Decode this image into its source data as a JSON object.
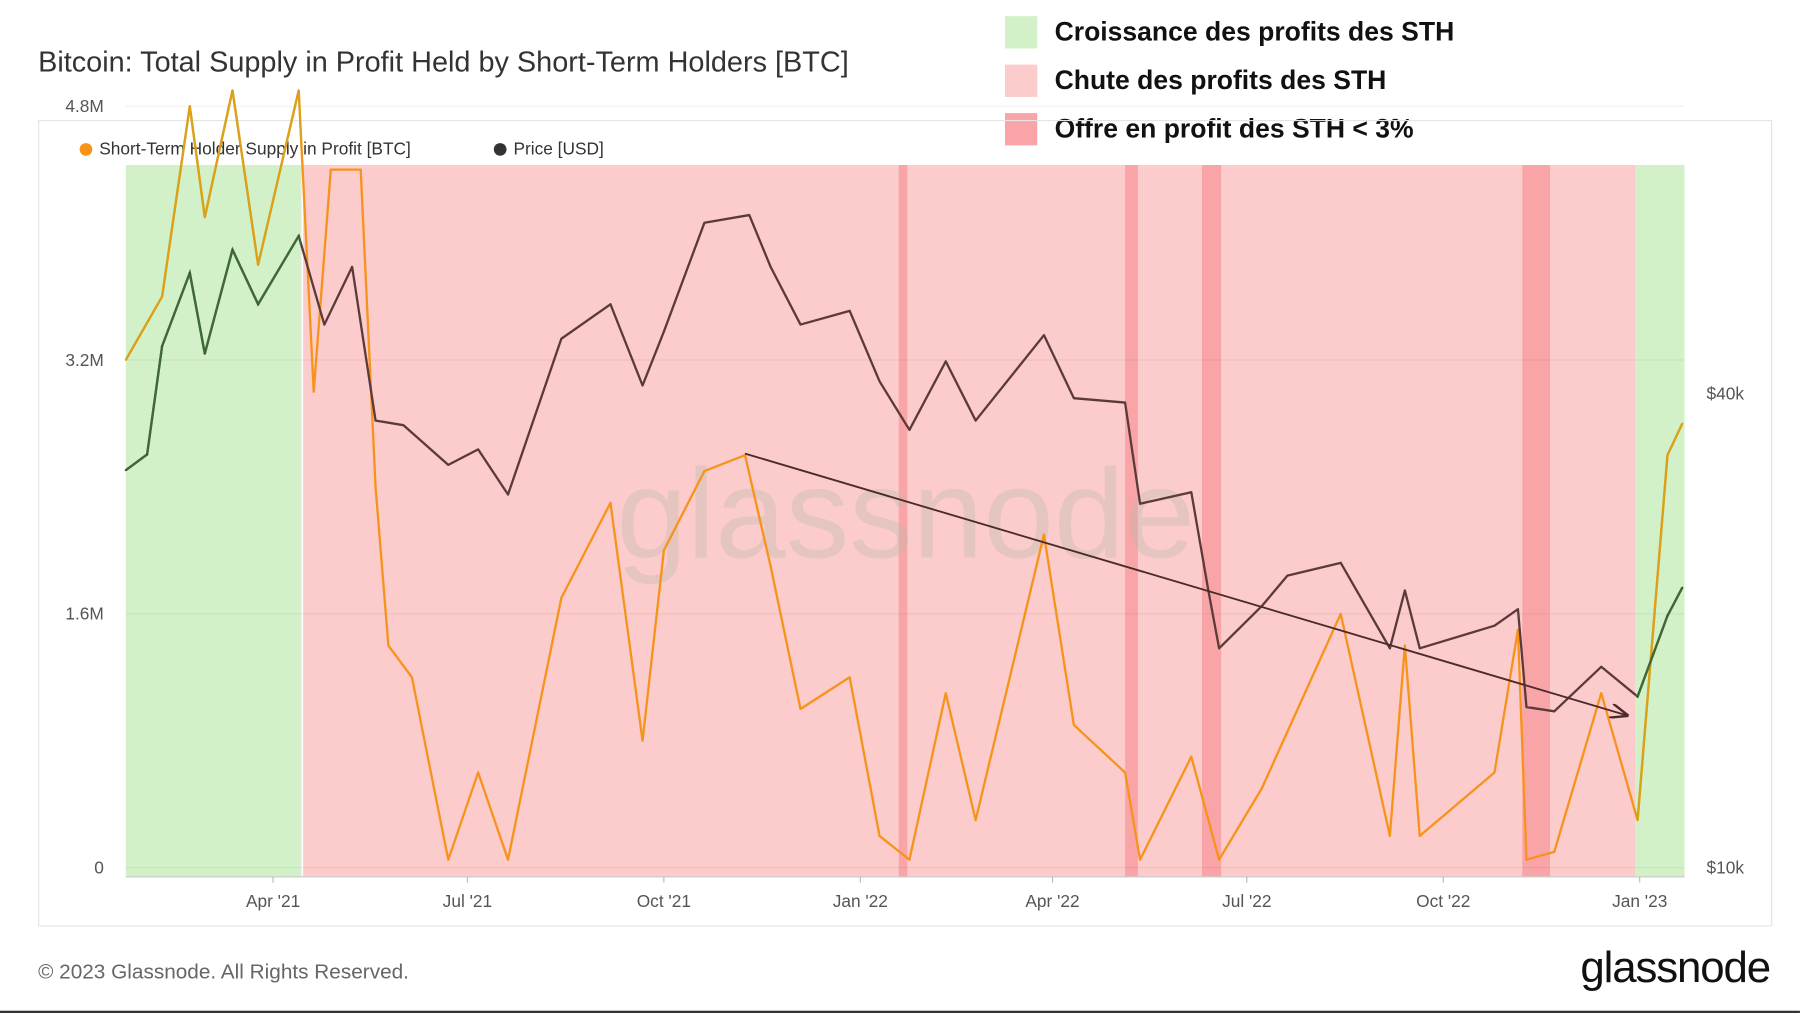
{
  "title": "Bitcoin: Total Supply in Profit Held by Short-Term Holders [BTC]",
  "overlay_legend": [
    {
      "label": "Croissance des profits des STH",
      "color": "#d3f1c8"
    },
    {
      "label": "Chute des profits des STH",
      "color": "#fccbcb"
    },
    {
      "label": "Offre en profit des STH < 3%",
      "color": "#f9a5a7"
    }
  ],
  "footer": "© 2023 Glassnode. All Rights Reserved.",
  "brand": "glassnode",
  "watermark": "glassnode",
  "chart_data": {
    "type": "line",
    "title": "Bitcoin: Total Supply in Profit Held by Short-Term Holders [BTC]",
    "x_range": [
      "2021-01-22",
      "2023-01-22"
    ],
    "x_ticks": [
      {
        "date": "2021-04-01",
        "label": "Apr '21"
      },
      {
        "date": "2021-07-01",
        "label": "Jul '21"
      },
      {
        "date": "2021-10-01",
        "label": "Oct '21"
      },
      {
        "date": "2022-01-01",
        "label": "Jan '22"
      },
      {
        "date": "2022-04-01",
        "label": "Apr '22"
      },
      {
        "date": "2022-07-01",
        "label": "Jul '22"
      },
      {
        "date": "2022-10-01",
        "label": "Oct '22"
      },
      {
        "date": "2023-01-01",
        "label": "Jan '23"
      }
    ],
    "y_left": {
      "range": [
        0,
        5.5
      ],
      "unit": "M BTC",
      "ticks": [
        {
          "v": 0,
          "label": "0"
        },
        {
          "v": 1.6,
          "label": "1.6M"
        },
        {
          "v": 3.2,
          "label": "3.2M"
        },
        {
          "v": 4.8,
          "label": "4.8M"
        }
      ]
    },
    "y_right": {
      "scale": "log",
      "range": [
        10000,
        75000
      ],
      "ticks": [
        {
          "v": 10000,
          "label": "$10k"
        },
        {
          "v": 40000,
          "label": "$40k"
        }
      ]
    },
    "grid": true,
    "legend_placement": "top-left",
    "series": [
      {
        "name": "Short-Term Holder Supply in Profit [BTC]",
        "axis": "left",
        "color": "#f7931a",
        "color_in_growth": "#d9a21b",
        "points": [
          [
            "2021-01-22",
            3.2
          ],
          [
            "2021-02-08",
            3.6
          ],
          [
            "2021-02-21",
            4.8
          ],
          [
            "2021-02-28",
            4.1
          ],
          [
            "2021-03-13",
            4.9
          ],
          [
            "2021-03-25",
            3.8
          ],
          [
            "2021-04-13",
            4.9
          ],
          [
            "2021-04-20",
            3.0
          ],
          [
            "2021-04-28",
            4.4
          ],
          [
            "2021-05-12",
            4.4
          ],
          [
            "2021-05-19",
            2.4
          ],
          [
            "2021-05-25",
            1.4
          ],
          [
            "2021-06-05",
            1.2
          ],
          [
            "2021-06-22",
            0.05
          ],
          [
            "2021-07-06",
            0.6
          ],
          [
            "2021-07-20",
            0.05
          ],
          [
            "2021-08-14",
            1.7
          ],
          [
            "2021-09-06",
            2.3
          ],
          [
            "2021-09-21",
            0.8
          ],
          [
            "2021-10-01",
            2.0
          ],
          [
            "2021-10-20",
            2.5
          ],
          [
            "2021-11-08",
            2.6
          ],
          [
            "2021-11-20",
            1.9
          ],
          [
            "2021-12-04",
            1.0
          ],
          [
            "2021-12-27",
            1.2
          ],
          [
            "2022-01-10",
            0.2
          ],
          [
            "2022-01-24",
            0.05
          ],
          [
            "2022-02-10",
            1.1
          ],
          [
            "2022-02-24",
            0.3
          ],
          [
            "2022-03-28",
            2.1
          ],
          [
            "2022-04-11",
            0.9
          ],
          [
            "2022-05-05",
            0.6
          ],
          [
            "2022-05-12",
            0.05
          ],
          [
            "2022-06-05",
            0.7
          ],
          [
            "2022-06-18",
            0.05
          ],
          [
            "2022-07-08",
            0.5
          ],
          [
            "2022-08-14",
            1.6
          ],
          [
            "2022-09-06",
            0.2
          ],
          [
            "2022-09-13",
            1.4
          ],
          [
            "2022-09-20",
            0.2
          ],
          [
            "2022-10-25",
            0.6
          ],
          [
            "2022-11-05",
            1.5
          ],
          [
            "2022-11-09",
            0.05
          ],
          [
            "2022-11-22",
            0.1
          ],
          [
            "2022-12-14",
            1.1
          ],
          [
            "2022-12-31",
            0.3
          ],
          [
            "2023-01-14",
            2.6
          ],
          [
            "2023-01-21",
            2.8
          ]
        ]
      },
      {
        "name": "Price [USD]",
        "axis": "right",
        "color": "#5b3a3a",
        "color_in_growth": "#3d6b35",
        "points": [
          [
            "2021-01-22",
            32000
          ],
          [
            "2021-02-01",
            33500
          ],
          [
            "2021-02-08",
            46000
          ],
          [
            "2021-02-21",
            57000
          ],
          [
            "2021-02-28",
            45000
          ],
          [
            "2021-03-13",
            61000
          ],
          [
            "2021-03-25",
            52000
          ],
          [
            "2021-04-13",
            63500
          ],
          [
            "2021-04-25",
            49000
          ],
          [
            "2021-05-08",
            58000
          ],
          [
            "2021-05-19",
            37000
          ],
          [
            "2021-06-01",
            36500
          ],
          [
            "2021-06-22",
            32500
          ],
          [
            "2021-07-06",
            34000
          ],
          [
            "2021-07-20",
            29800
          ],
          [
            "2021-08-14",
            47000
          ],
          [
            "2021-09-06",
            52000
          ],
          [
            "2021-09-21",
            41000
          ],
          [
            "2021-10-01",
            48000
          ],
          [
            "2021-10-20",
            66000
          ],
          [
            "2021-11-10",
            67500
          ],
          [
            "2021-11-20",
            58000
          ],
          [
            "2021-12-04",
            49000
          ],
          [
            "2021-12-27",
            51000
          ],
          [
            "2022-01-10",
            41500
          ],
          [
            "2022-01-24",
            36000
          ],
          [
            "2022-02-10",
            44000
          ],
          [
            "2022-02-24",
            37000
          ],
          [
            "2022-03-28",
            47500
          ],
          [
            "2022-04-11",
            39500
          ],
          [
            "2022-05-05",
            39000
          ],
          [
            "2022-05-12",
            29000
          ],
          [
            "2022-06-05",
            30000
          ],
          [
            "2022-06-13",
            22500
          ],
          [
            "2022-06-18",
            19000
          ],
          [
            "2022-07-08",
            21500
          ],
          [
            "2022-07-20",
            23500
          ],
          [
            "2022-08-14",
            24400
          ],
          [
            "2022-09-06",
            19000
          ],
          [
            "2022-09-13",
            22500
          ],
          [
            "2022-09-20",
            19000
          ],
          [
            "2022-10-25",
            20300
          ],
          [
            "2022-11-05",
            21300
          ],
          [
            "2022-11-09",
            16000
          ],
          [
            "2022-11-22",
            15800
          ],
          [
            "2022-12-14",
            18000
          ],
          [
            "2022-12-31",
            16500
          ],
          [
            "2023-01-14",
            20900
          ],
          [
            "2023-01-21",
            22700
          ]
        ]
      }
    ],
    "regions": [
      {
        "type": "growth",
        "from": "2021-01-22",
        "to": "2021-04-14"
      },
      {
        "type": "decline",
        "from": "2021-04-14",
        "to": "2022-12-30"
      },
      {
        "type": "low",
        "from": "2022-01-19",
        "to": "2022-01-23"
      },
      {
        "type": "low",
        "from": "2022-05-05",
        "to": "2022-05-11"
      },
      {
        "type": "low",
        "from": "2022-06-10",
        "to": "2022-06-19"
      },
      {
        "type": "low",
        "from": "2022-11-07",
        "to": "2022-11-20"
      },
      {
        "type": "growth",
        "from": "2022-12-30",
        "to": "2023-01-22"
      }
    ],
    "annotations": [
      {
        "type": "arrow",
        "from": [
          "2021-11-08",
          2.61
        ],
        "to": [
          "2022-12-26",
          0.96
        ]
      }
    ]
  }
}
